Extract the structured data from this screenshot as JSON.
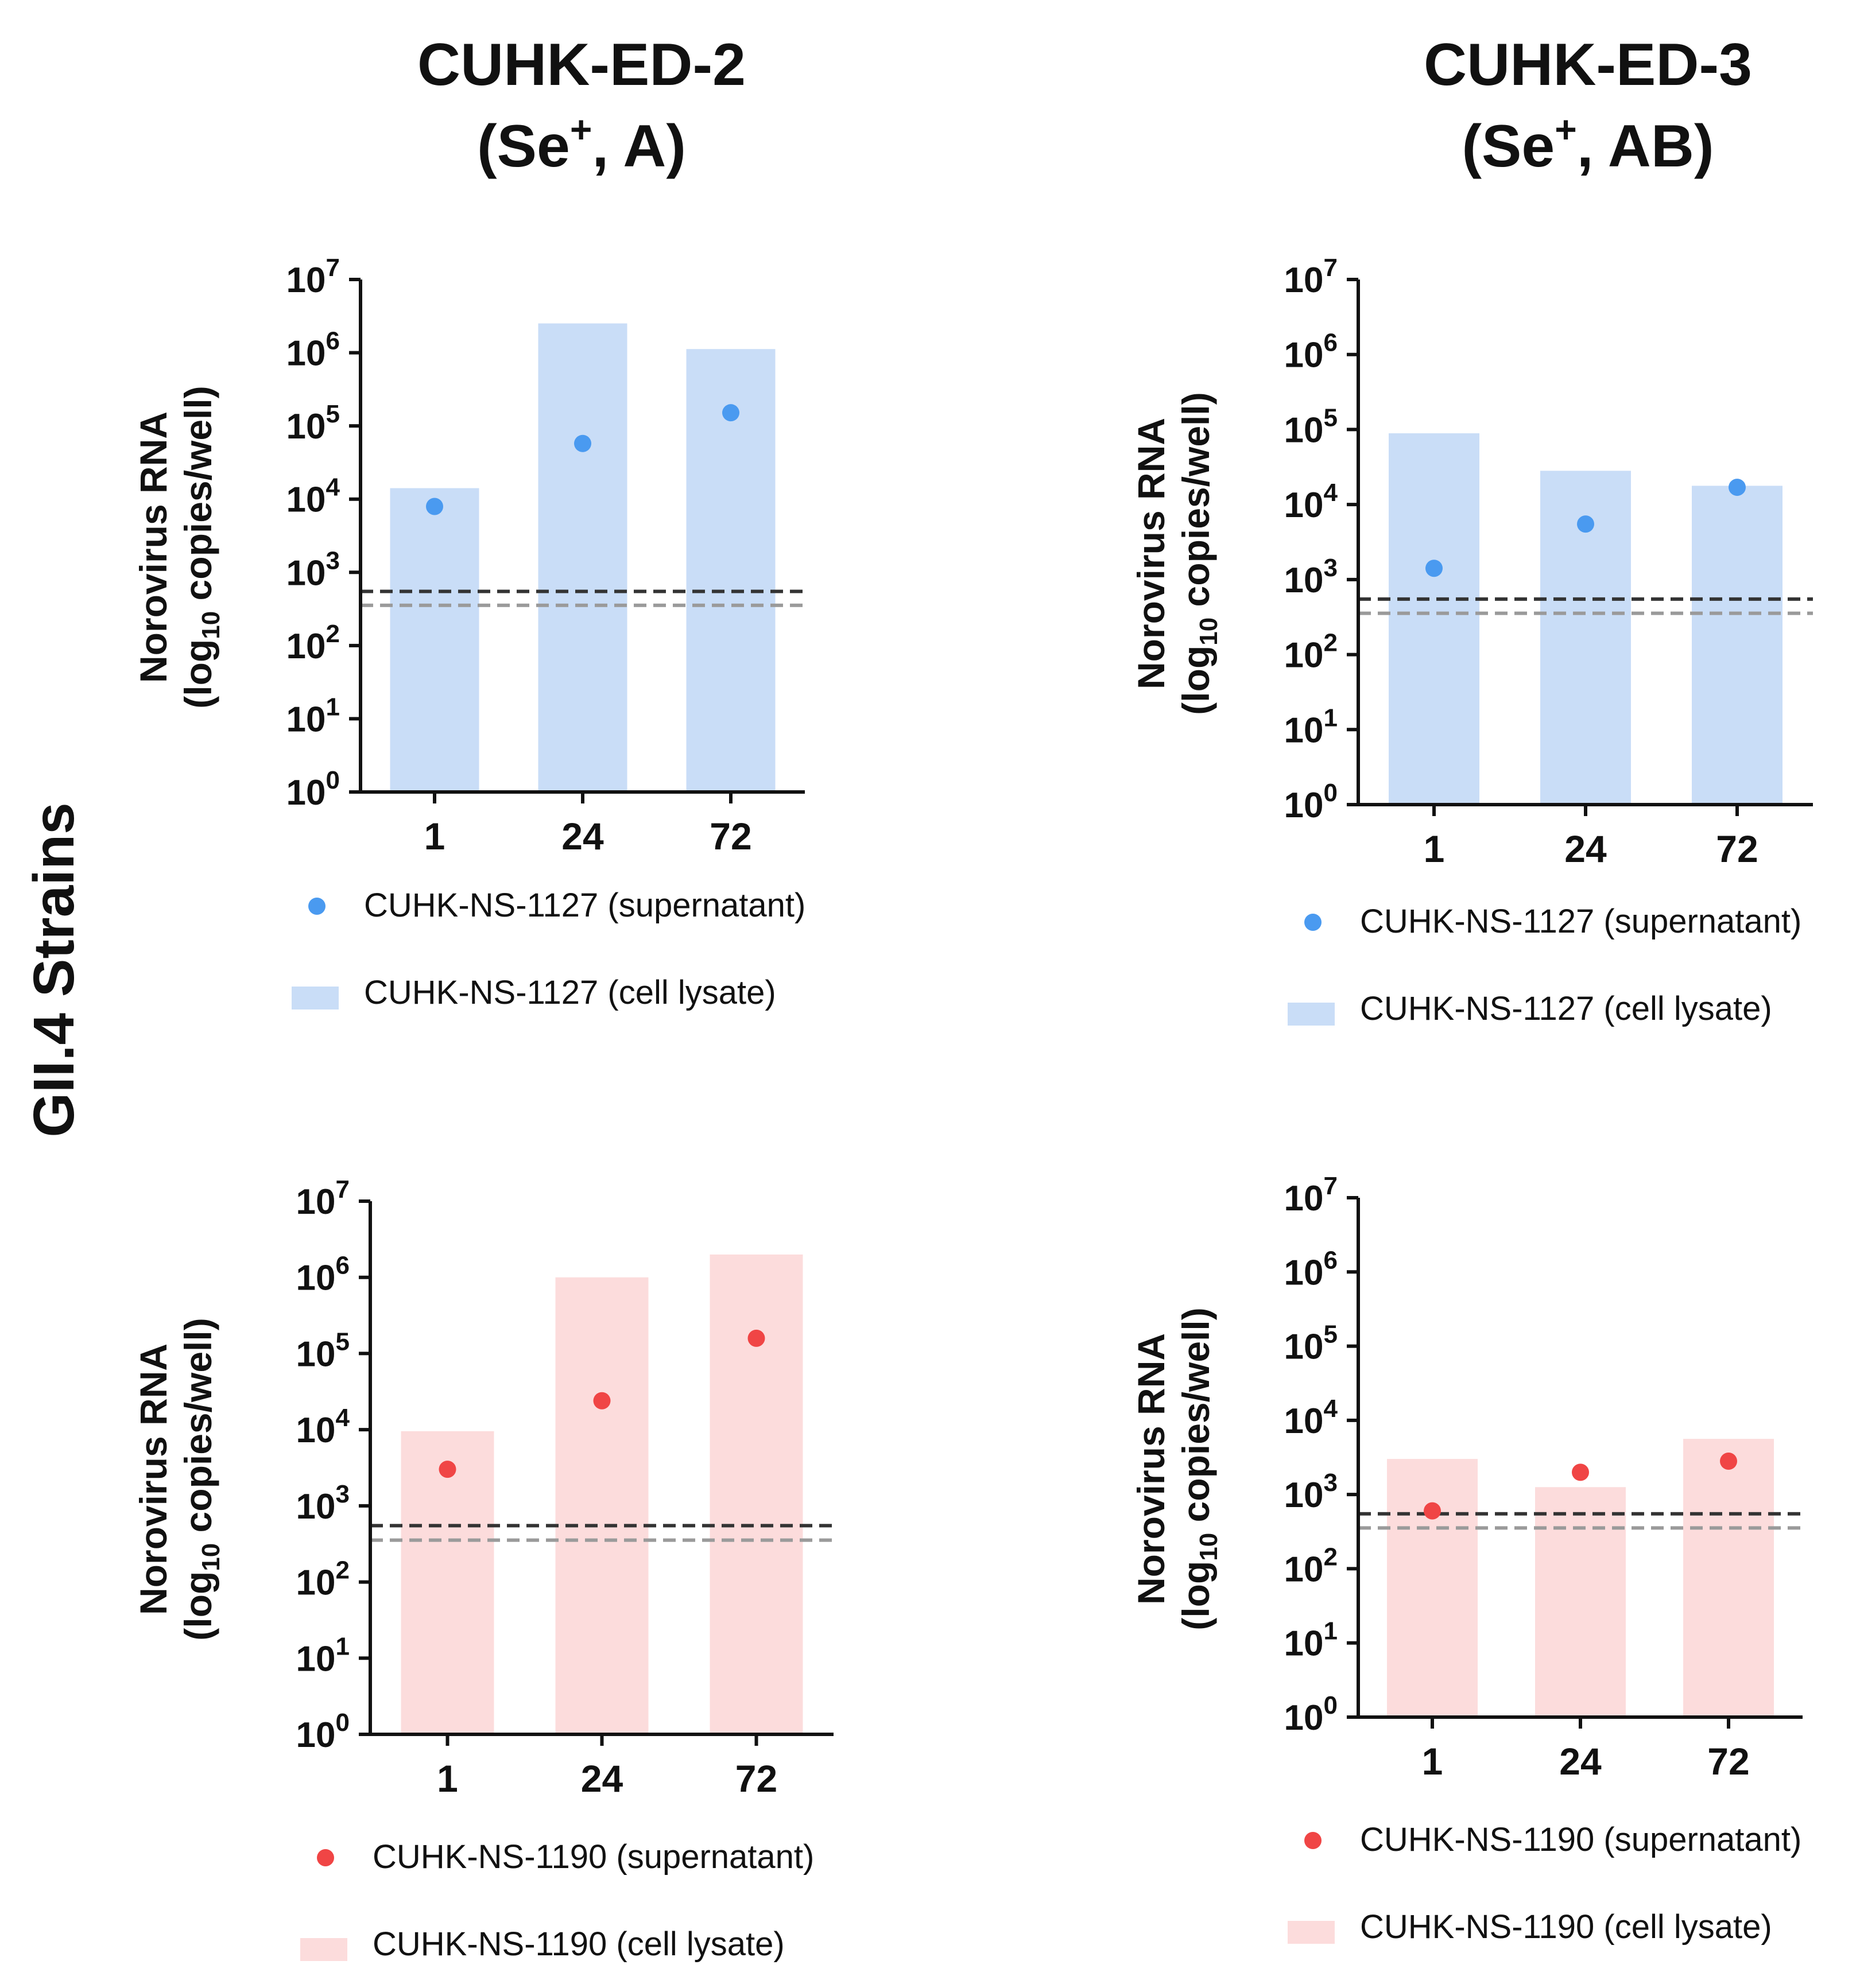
{
  "column_titles": [
    {
      "line1": "CUHK-ED-2",
      "line2_base": "(Se",
      "line2_sup": "+",
      "line2_rest": ", A)"
    },
    {
      "line1": "CUHK-ED-3",
      "line2_base": "(Se",
      "line2_sup": "+",
      "line2_rest": ", AB)"
    }
  ],
  "side_label": "GII.4 Strains",
  "colors": {
    "blue_point": "#4a9af0",
    "blue_bar": "#c9ddf7",
    "red_point": "#f04545",
    "red_bar": "#fcdcdc",
    "dash_dark": "#333333",
    "dash_light": "#9a9a9a"
  },
  "chart_data": [
    {
      "type": "bar",
      "panel": "top-left",
      "ylabel_line1": "Norovirus RNA",
      "ylabel_line2_pre": "(log",
      "ylabel_line2_sub": "10",
      "ylabel_line2_post": " copies/well)",
      "y_scale": "log10",
      "ylim": [
        0,
        7
      ],
      "ytick_exponents": [
        "0",
        "1",
        "2",
        "3",
        "4",
        "5",
        "6",
        "7"
      ],
      "categories": [
        "1",
        "24",
        "72"
      ],
      "bar_series": {
        "name": "CUHK-NS-1127 (cell lysate)",
        "log_values": [
          4.15,
          6.4,
          6.05
        ]
      },
      "point_series": {
        "name": "CUHK-NS-1127 (supernatant)",
        "log_values": [
          3.9,
          4.76,
          5.18
        ]
      },
      "threshold_lines_log": [
        2.74,
        2.55
      ],
      "legend_point_label": "CUHK-NS-1127 (supernatant)",
      "legend_bar_label": "CUHK-NS-1127 (cell lysate)",
      "color_scheme": "blue"
    },
    {
      "type": "bar",
      "panel": "top-right",
      "ylabel_line1": "Norovirus RNA",
      "ylabel_line2_pre": "(log",
      "ylabel_line2_sub": "10",
      "ylabel_line2_post": " copies/well)",
      "y_scale": "log10",
      "ylim": [
        0,
        7
      ],
      "ytick_exponents": [
        "0",
        "1",
        "2",
        "3",
        "4",
        "5",
        "6",
        "7"
      ],
      "categories": [
        "1",
        "24",
        "72"
      ],
      "bar_series": {
        "name": "CUHK-NS-1127 (cell lysate)",
        "log_values": [
          4.95,
          4.45,
          4.25
        ]
      },
      "point_series": {
        "name": "CUHK-NS-1127 (supernatant)",
        "log_values": [
          3.15,
          3.74,
          4.23
        ]
      },
      "threshold_lines_log": [
        2.74,
        2.55
      ],
      "legend_point_label": "CUHK-NS-1127 (supernatant)",
      "legend_bar_label": "CUHK-NS-1127 (cell lysate)",
      "color_scheme": "blue"
    },
    {
      "type": "bar",
      "panel": "bottom-left",
      "ylabel_line1": "Norovirus RNA",
      "ylabel_line2_pre": "(log",
      "ylabel_line2_sub": "10",
      "ylabel_line2_post": " copies/well)",
      "y_scale": "log10",
      "ylim": [
        0,
        7
      ],
      "ytick_exponents": [
        "0",
        "1",
        "2",
        "3",
        "4",
        "5",
        "6",
        "7"
      ],
      "categories": [
        "1",
        "24",
        "72"
      ],
      "bar_series": {
        "name": "CUHK-NS-1190 (cell lysate)",
        "log_values": [
          3.98,
          6.0,
          6.3
        ]
      },
      "point_series": {
        "name": "CUHK-NS-1190 (supernatant)",
        "log_values": [
          3.48,
          4.38,
          5.2
        ]
      },
      "threshold_lines_log": [
        2.74,
        2.55
      ],
      "legend_point_label": "CUHK-NS-1190 (supernatant)",
      "legend_bar_label": "CUHK-NS-1190 (cell lysate)",
      "color_scheme": "red"
    },
    {
      "type": "bar",
      "panel": "bottom-right",
      "ylabel_line1": "Norovirus RNA",
      "ylabel_line2_pre": "(log",
      "ylabel_line2_sub": "10",
      "ylabel_line2_post": " copies/well)",
      "y_scale": "log10",
      "ylim": [
        0,
        7
      ],
      "ytick_exponents": [
        "0",
        "1",
        "2",
        "3",
        "4",
        "5",
        "6",
        "7"
      ],
      "categories": [
        "1",
        "24",
        "72"
      ],
      "bar_series": {
        "name": "CUHK-NS-1190 (cell lysate)",
        "log_values": [
          3.48,
          3.1,
          3.75
        ]
      },
      "point_series": {
        "name": "CUHK-NS-1190 (supernatant)",
        "log_values": [
          2.78,
          3.3,
          3.45
        ]
      },
      "threshold_lines_log": [
        2.74,
        2.55
      ],
      "legend_point_label": "CUHK-NS-1190 (supernatant)",
      "legend_bar_label": "CUHK-NS-1190 (cell lysate)",
      "color_scheme": "red"
    }
  ]
}
